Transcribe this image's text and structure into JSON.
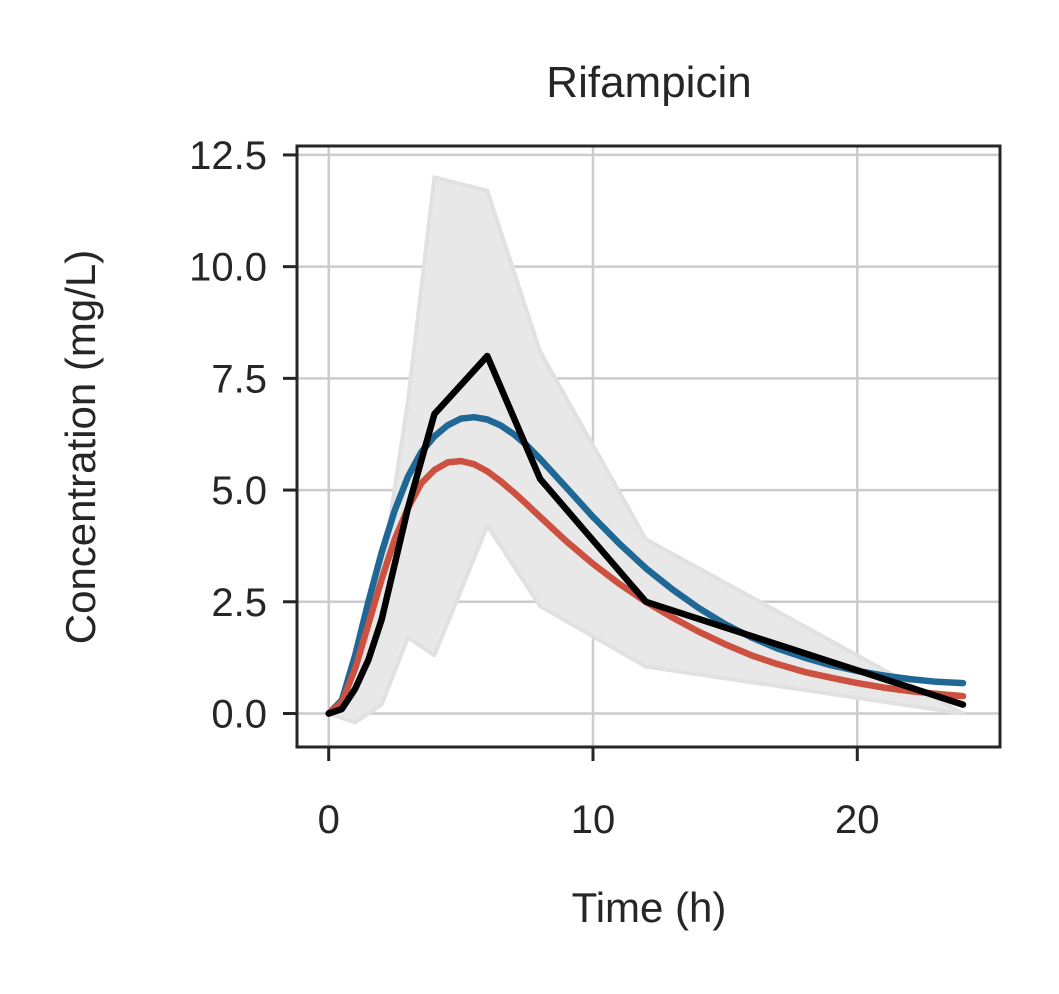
{
  "chart_data": {
    "type": "line",
    "title": "Rifampicin",
    "xlabel": "Time (h)",
    "ylabel": "Concentration (mg/L)",
    "xlim": [
      -1.2,
      25.4
    ],
    "ylim": [
      -0.75,
      12.7
    ],
    "x_ticks": [
      0,
      10,
      20
    ],
    "x_tick_labels": [
      "0",
      "10",
      "20"
    ],
    "y_ticks": [
      0,
      2.5,
      5,
      7.5,
      10,
      12.5
    ],
    "y_tick_labels": [
      "0.0",
      "2.5",
      "5.0",
      "7.5",
      "10.0",
      "12.5"
    ],
    "grid": true,
    "legend": "none",
    "band": {
      "color": "#e8e8e8",
      "x": [
        0,
        1,
        2,
        3,
        4,
        6,
        8,
        12,
        24
      ],
      "lower": [
        0,
        -0.2,
        0.2,
        1.7,
        1.3,
        4.2,
        2.4,
        1.05,
        0
      ],
      "upper": [
        0,
        0.4,
        3.1,
        7.0,
        12.0,
        11.7,
        8.1,
        3.9,
        0
      ]
    },
    "series": [
      {
        "color": "#1f6896",
        "x": [
          0,
          0.5,
          1,
          1.5,
          2,
          2.5,
          3,
          3.5,
          4,
          4.5,
          5,
          5.5,
          6,
          6.5,
          7,
          7.5,
          8,
          9,
          10,
          11,
          12,
          13,
          14,
          15,
          16,
          17,
          18,
          19,
          20,
          21,
          22,
          23,
          24
        ],
        "y": [
          0,
          0.3,
          1.3,
          2.5,
          3.6,
          4.55,
          5.3,
          5.85,
          6.2,
          6.45,
          6.6,
          6.63,
          6.58,
          6.45,
          6.25,
          6.0,
          5.7,
          5.05,
          4.4,
          3.8,
          3.25,
          2.78,
          2.36,
          2.0,
          1.7,
          1.45,
          1.25,
          1.08,
          0.95,
          0.85,
          0.77,
          0.71,
          0.68
        ]
      },
      {
        "color": "#cd5140",
        "x": [
          0,
          0.5,
          1,
          1.5,
          2,
          2.5,
          3,
          3.5,
          4,
          4.5,
          5,
          5.5,
          6,
          6.5,
          7,
          7.5,
          8,
          9,
          10,
          11,
          12,
          13,
          14,
          15,
          16,
          17,
          18,
          19,
          20,
          21,
          22,
          23,
          24
        ],
        "y": [
          0,
          0.25,
          1.0,
          2.0,
          3.0,
          3.9,
          4.6,
          5.15,
          5.45,
          5.62,
          5.65,
          5.58,
          5.42,
          5.2,
          4.95,
          4.68,
          4.4,
          3.85,
          3.35,
          2.9,
          2.5,
          2.15,
          1.83,
          1.55,
          1.3,
          1.1,
          0.93,
          0.8,
          0.68,
          0.58,
          0.5,
          0.44,
          0.39
        ]
      },
      {
        "color": "#000000",
        "x": [
          0,
          0.5,
          1,
          1.5,
          2,
          3,
          4,
          6,
          8,
          12,
          24
        ],
        "y": [
          0,
          0.1,
          0.55,
          1.2,
          2.1,
          4.6,
          6.7,
          8.0,
          5.25,
          2.5,
          0.2
        ]
      }
    ]
  }
}
